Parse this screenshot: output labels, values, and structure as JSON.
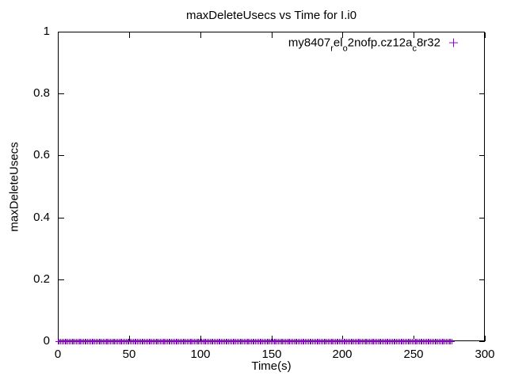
{
  "chart_data": {
    "type": "scatter",
    "title": "maxDeleteUsecs vs Time for I.i0",
    "xlabel": "Time(s)",
    "ylabel": "maxDeleteUsecs",
    "xlim": [
      0,
      300
    ],
    "ylim": [
      0,
      1
    ],
    "x_ticks": [
      0,
      50,
      100,
      150,
      200,
      250,
      300
    ],
    "y_ticks": [
      0,
      0.2,
      0.4,
      0.6,
      0.8,
      1
    ],
    "grid": false,
    "legend_position": "top-right-inside",
    "background_color": "#ffffff",
    "axis_color": "#000000",
    "series": [
      {
        "name": "my8407_rel_o2nofp.cz12a_c8r32",
        "label_segments": [
          {
            "text": "my8407",
            "sub": false
          },
          {
            "text": "r",
            "sub": true
          },
          {
            "text": "el",
            "sub": false
          },
          {
            "text": "o",
            "sub": true
          },
          {
            "text": "2nofp.cz12a",
            "sub": false
          },
          {
            "text": "c",
            "sub": true
          },
          {
            "text": "8r32",
            "sub": false
          }
        ],
        "marker": "plus",
        "color": "#9400d3",
        "x_start": 0,
        "x_end": 277,
        "x_step": 1,
        "y_constant": 0,
        "note": "all data points lie on y = 0 from t = 0 s to t = 277 s"
      }
    ]
  }
}
